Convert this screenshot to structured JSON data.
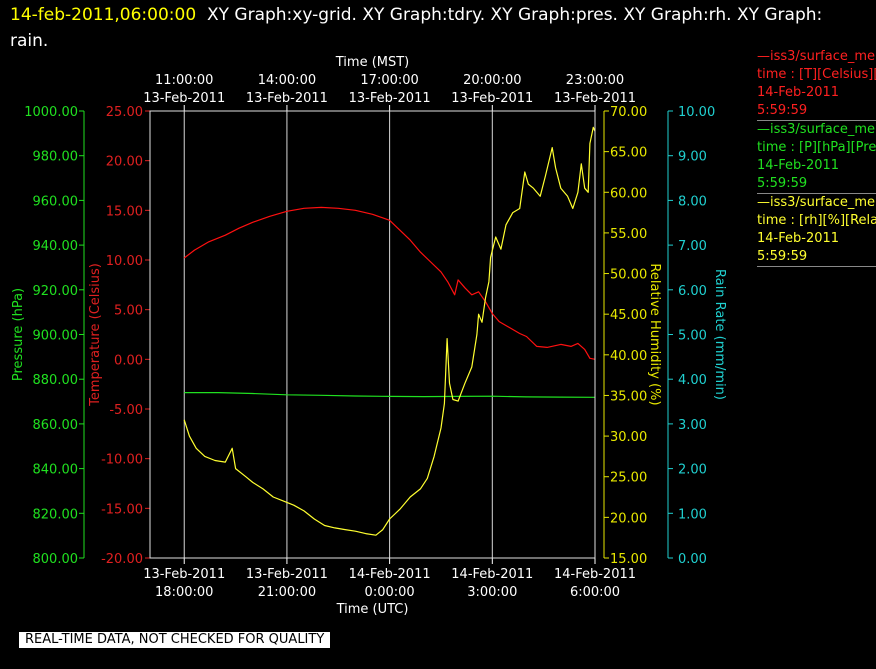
{
  "header": {
    "timestamp": "14-feb-2011,06:00:00",
    "title_line1": "XY Graph:xy-grid.  XY Graph:tdry.  XY Graph:pres.  XY Graph:rh.  XY Graph:",
    "title_line2": "rain."
  },
  "legend": [
    {
      "color": "#ff2020",
      "line1": "—iss3/surface_me",
      "line2": "time : [T][Celsius][T",
      "line3": "14-Feb-2011",
      "line4": "5:59:59"
    },
    {
      "color": "#20e020",
      "line1": "—iss3/surface_me",
      "line2": "time : [P][hPa][Pres",
      "line3": "14-Feb-2011",
      "line4": "5:59:59"
    },
    {
      "color": "#ffff30",
      "line1": "—iss3/surface_me",
      "line2": "time : [rh][%][Relati",
      "line3": "14-Feb-2011",
      "line4": "5:59:59"
    }
  ],
  "banner": "REAL-TIME DATA, NOT CHECKED FOR QUALITY",
  "chart_data": {
    "type": "line",
    "x_top_label": "Time (MST)",
    "x_bottom_label": "Time (UTC)",
    "x_range_hours_utc": [
      17.0,
      30.0
    ],
    "top_ticks": [
      {
        "x": 18,
        "line1": "11:00:00",
        "line2": "13-Feb-2011"
      },
      {
        "x": 21,
        "line1": "14:00:00",
        "line2": "13-Feb-2011"
      },
      {
        "x": 24,
        "line1": "17:00:00",
        "line2": "13-Feb-2011"
      },
      {
        "x": 27,
        "line1": "20:00:00",
        "line2": "13-Feb-2011"
      },
      {
        "x": 30,
        "line1": "23:00:00",
        "line2": "13-Feb-2011"
      }
    ],
    "bottom_ticks": [
      {
        "x": 18,
        "line1": "13-Feb-2011",
        "line2": "18:00:00"
      },
      {
        "x": 21,
        "line1": "13-Feb-2011",
        "line2": "21:00:00"
      },
      {
        "x": 24,
        "line1": "14-Feb-2011",
        "line2": "0:00:00"
      },
      {
        "x": 27,
        "line1": "14-Feb-2011",
        "line2": "3:00:00"
      },
      {
        "x": 30,
        "line1": "14-Feb-2011",
        "line2": "6:00:00"
      }
    ],
    "axes": [
      {
        "id": "pres",
        "label": "Pressure (hPa)",
        "color": "#20e020",
        "min": 800,
        "max": 1000,
        "step": 20,
        "decimals": 2
      },
      {
        "id": "temp",
        "label": "Temperature (Celsius)",
        "color": "#e02020",
        "min": -20,
        "max": 25,
        "step": 5,
        "decimals": 2
      },
      {
        "id": "rh",
        "label": "Relative Humidity (%)",
        "color": "#e8e800",
        "min": 15,
        "max": 70,
        "step": 5,
        "decimals": 2
      },
      {
        "id": "rain",
        "label": "Rain Rate (mm/min)",
        "color": "#20d0d0",
        "min": 0,
        "max": 10,
        "step": 1,
        "decimals": 2
      }
    ],
    "series": [
      {
        "name": "Temperature",
        "axis": "temp",
        "color": "#ff1010",
        "points": [
          [
            18.0,
            10.2
          ],
          [
            18.3,
            11.0
          ],
          [
            18.7,
            11.8
          ],
          [
            19.2,
            12.5
          ],
          [
            19.6,
            13.2
          ],
          [
            20.0,
            13.8
          ],
          [
            20.5,
            14.4
          ],
          [
            21.0,
            14.9
          ],
          [
            21.5,
            15.2
          ],
          [
            22.0,
            15.3
          ],
          [
            22.5,
            15.2
          ],
          [
            23.0,
            15.0
          ],
          [
            23.5,
            14.6
          ],
          [
            24.0,
            14.0
          ],
          [
            24.3,
            13.0
          ],
          [
            24.6,
            12.0
          ],
          [
            24.9,
            10.8
          ],
          [
            25.2,
            9.8
          ],
          [
            25.5,
            8.8
          ],
          [
            25.7,
            7.8
          ],
          [
            25.9,
            6.5
          ],
          [
            26.0,
            8.0
          ],
          [
            26.2,
            7.2
          ],
          [
            26.4,
            6.5
          ],
          [
            26.6,
            6.8
          ],
          [
            26.8,
            5.8
          ],
          [
            27.0,
            4.6
          ],
          [
            27.2,
            3.8
          ],
          [
            27.5,
            3.2
          ],
          [
            27.8,
            2.6
          ],
          [
            28.0,
            2.3
          ],
          [
            28.3,
            1.3
          ],
          [
            28.6,
            1.2
          ],
          [
            29.0,
            1.5
          ],
          [
            29.3,
            1.3
          ],
          [
            29.5,
            1.6
          ],
          [
            29.7,
            1.0
          ],
          [
            29.85,
            0.1
          ],
          [
            30.0,
            0.0
          ]
        ]
      },
      {
        "name": "Pressure",
        "axis": "pres",
        "color": "#20e020",
        "points": [
          [
            18.0,
            874.0
          ],
          [
            19.0,
            874.0
          ],
          [
            20.0,
            873.6
          ],
          [
            21.0,
            873.0
          ],
          [
            22.0,
            872.8
          ],
          [
            23.0,
            872.5
          ],
          [
            24.0,
            872.3
          ],
          [
            25.0,
            872.2
          ],
          [
            26.0,
            872.3
          ],
          [
            27.0,
            872.4
          ],
          [
            28.0,
            872.1
          ],
          [
            29.0,
            872.0
          ],
          [
            30.0,
            871.9
          ]
        ]
      },
      {
        "name": "Relative Humidity",
        "axis": "rh",
        "color": "#ffff30",
        "points": [
          [
            18.0,
            32.0
          ],
          [
            18.15,
            30.0
          ],
          [
            18.35,
            28.5
          ],
          [
            18.6,
            27.5
          ],
          [
            18.9,
            27.0
          ],
          [
            19.2,
            26.8
          ],
          [
            19.4,
            28.5
          ],
          [
            19.5,
            26.0
          ],
          [
            19.8,
            25.0
          ],
          [
            20.0,
            24.3
          ],
          [
            20.3,
            23.5
          ],
          [
            20.6,
            22.5
          ],
          [
            20.9,
            22.0
          ],
          [
            21.2,
            21.5
          ],
          [
            21.5,
            20.8
          ],
          [
            21.8,
            19.8
          ],
          [
            22.1,
            19.0
          ],
          [
            22.4,
            18.7
          ],
          [
            22.7,
            18.5
          ],
          [
            23.0,
            18.3
          ],
          [
            23.3,
            18.0
          ],
          [
            23.6,
            17.8
          ],
          [
            23.8,
            18.5
          ],
          [
            24.0,
            19.8
          ],
          [
            24.3,
            21.0
          ],
          [
            24.6,
            22.5
          ],
          [
            24.9,
            23.5
          ],
          [
            25.1,
            24.8
          ],
          [
            25.3,
            27.5
          ],
          [
            25.5,
            31.0
          ],
          [
            25.6,
            34.0
          ],
          [
            25.68,
            42.0
          ],
          [
            25.75,
            36.5
          ],
          [
            25.85,
            34.5
          ],
          [
            26.0,
            34.3
          ],
          [
            26.2,
            36.5
          ],
          [
            26.4,
            38.5
          ],
          [
            26.55,
            42.5
          ],
          [
            26.6,
            45.0
          ],
          [
            26.7,
            44.0
          ],
          [
            26.8,
            47.0
          ],
          [
            26.9,
            49.0
          ],
          [
            26.95,
            52.0
          ],
          [
            27.1,
            54.5
          ],
          [
            27.25,
            53.0
          ],
          [
            27.4,
            56.0
          ],
          [
            27.6,
            57.5
          ],
          [
            27.8,
            58.0
          ],
          [
            27.95,
            62.5
          ],
          [
            28.05,
            61.0
          ],
          [
            28.2,
            60.5
          ],
          [
            28.4,
            59.5
          ],
          [
            28.55,
            62.0
          ],
          [
            28.75,
            65.5
          ],
          [
            28.85,
            63.0
          ],
          [
            29.0,
            60.5
          ],
          [
            29.2,
            59.5
          ],
          [
            29.35,
            58.0
          ],
          [
            29.5,
            60.0
          ],
          [
            29.6,
            63.5
          ],
          [
            29.7,
            60.5
          ],
          [
            29.8,
            60.0
          ],
          [
            29.85,
            66.0
          ],
          [
            29.95,
            68.0
          ],
          [
            30.0,
            67.5
          ]
        ]
      }
    ],
    "grid": true
  }
}
